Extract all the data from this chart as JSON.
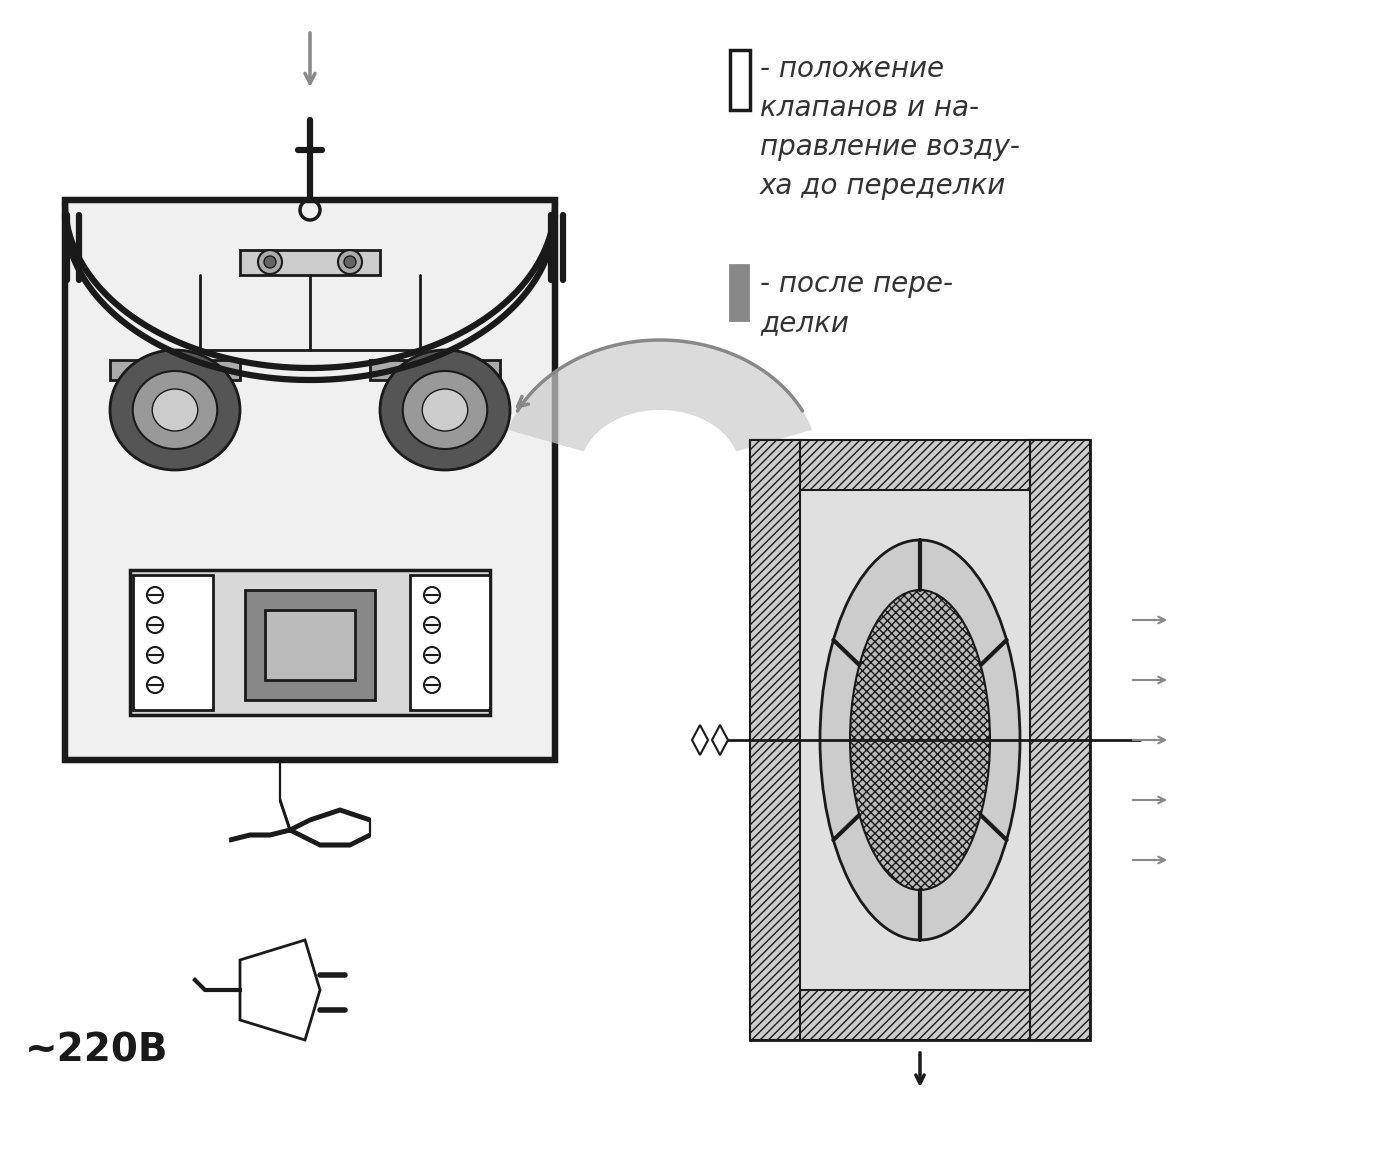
{
  "background_color": "#ffffff",
  "legend_text_1": "- положение\nклапанов и на-\nправление возду-\nха до переделки",
  "legend_text_2": "- после пере-\nделки",
  "voltage_text": "~220В",
  "figure_width": 13.85,
  "figure_height": 11.74,
  "dpi": 100
}
